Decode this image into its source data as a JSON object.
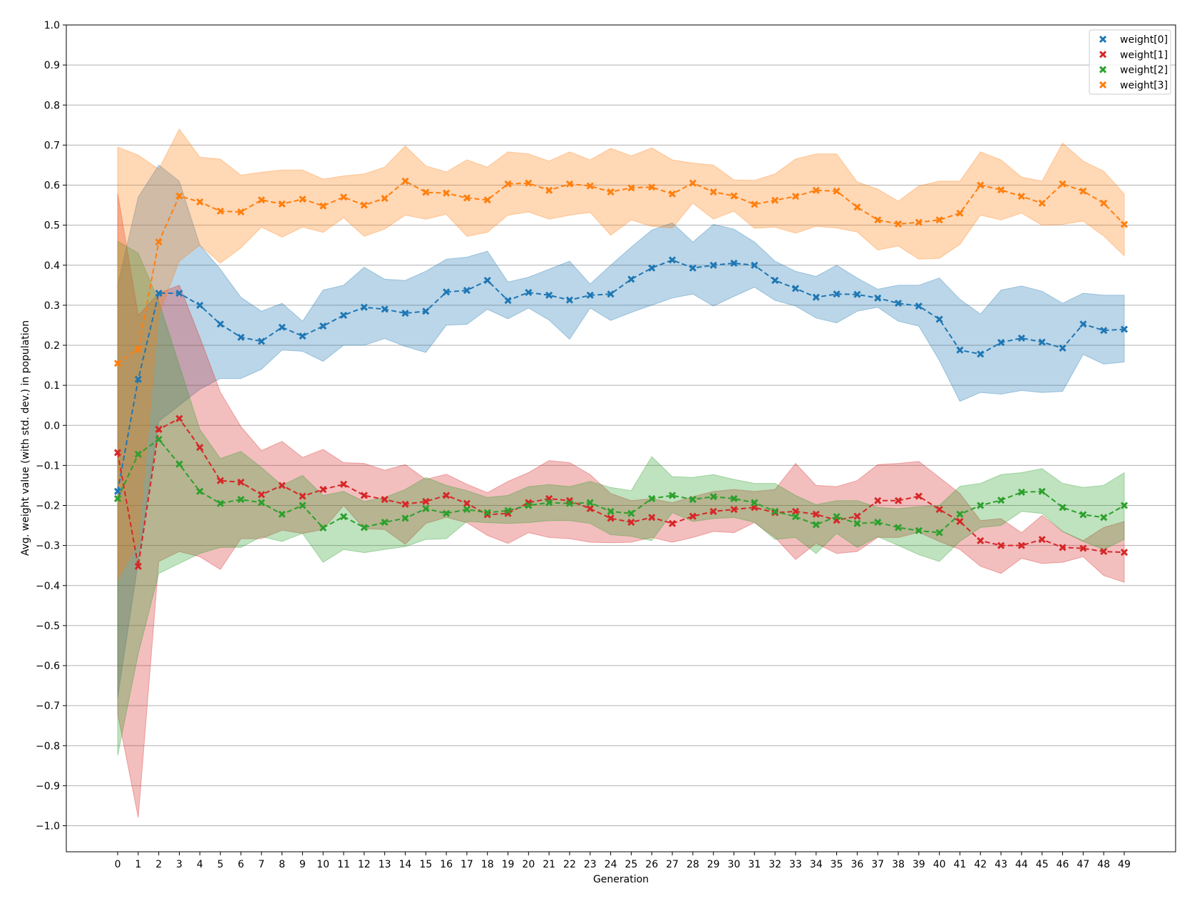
{
  "chart_data": {
    "type": "line",
    "title": "",
    "xlabel": "Generation",
    "ylabel": "Avg. weight value (with std. dev.) in population",
    "xlim": [
      -2.5,
      51.5
    ],
    "ylim": [
      -1.065,
      1.0
    ],
    "grid": "horizontal",
    "legend_position": "top-right",
    "x": [
      0,
      1,
      2,
      3,
      4,
      5,
      6,
      7,
      8,
      9,
      10,
      11,
      12,
      13,
      14,
      15,
      16,
      17,
      18,
      19,
      20,
      21,
      22,
      23,
      24,
      25,
      26,
      27,
      28,
      29,
      30,
      31,
      32,
      33,
      34,
      35,
      36,
      37,
      38,
      39,
      40,
      41,
      42,
      43,
      44,
      45,
      46,
      47,
      48,
      49
    ],
    "x_ticks": [
      "0",
      "1",
      "2",
      "3",
      "4",
      "5",
      "6",
      "7",
      "8",
      "9",
      "10",
      "11",
      "12",
      "13",
      "14",
      "15",
      "16",
      "17",
      "18",
      "19",
      "20",
      "21",
      "22",
      "23",
      "24",
      "25",
      "26",
      "27",
      "28",
      "29",
      "30",
      "31",
      "32",
      "33",
      "34",
      "35",
      "36",
      "37",
      "38",
      "39",
      "40",
      "41",
      "42",
      "43",
      "44",
      "45",
      "46",
      "47",
      "48",
      "49"
    ],
    "y_ticks": [
      "1.0",
      "0.9",
      "0.8",
      "0.7",
      "0.6",
      "0.5",
      "0.4",
      "0.3",
      "0.2",
      "0.1",
      "0.0",
      "−0.1",
      "−0.2",
      "−0.3",
      "−0.4",
      "−0.5",
      "−0.6",
      "−0.7",
      "−0.8",
      "−0.9",
      "−1.0"
    ],
    "y_tick_values": [
      1.0,
      0.9,
      0.8,
      0.7,
      0.6,
      0.5,
      0.4,
      0.3,
      0.2,
      0.1,
      0.0,
      -0.1,
      -0.2,
      -0.3,
      -0.4,
      -0.5,
      -0.6,
      -0.7,
      -0.8,
      -0.9,
      -1.0
    ],
    "series": [
      {
        "name": "weight[0]",
        "color": "#1f77b4",
        "mean": [
          -0.165,
          0.115,
          0.33,
          0.33,
          0.3,
          0.253,
          0.22,
          0.21,
          0.245,
          0.223,
          0.248,
          0.275,
          0.295,
          0.29,
          0.28,
          0.285,
          0.333,
          0.337,
          0.362,
          0.312,
          0.332,
          0.325,
          0.313,
          0.325,
          0.328,
          0.365,
          0.393,
          0.413,
          0.393,
          0.4,
          0.405,
          0.4,
          0.362,
          0.342,
          0.32,
          0.328,
          0.327,
          0.318,
          0.305,
          0.298,
          0.265,
          0.188,
          0.178,
          0.207,
          0.218,
          0.208,
          0.193,
          0.253,
          0.237,
          0.24
        ],
        "std_upper": [
          0.35,
          0.57,
          0.65,
          0.61,
          0.45,
          0.39,
          0.32,
          0.285,
          0.305,
          0.26,
          0.338,
          0.35,
          0.395,
          0.365,
          0.362,
          0.385,
          0.415,
          0.42,
          0.435,
          0.358,
          0.37,
          0.39,
          0.41,
          0.353,
          0.4,
          0.445,
          0.488,
          0.506,
          0.458,
          0.502,
          0.49,
          0.458,
          0.41,
          0.385,
          0.372,
          0.4,
          0.368,
          0.34,
          0.35,
          0.35,
          0.368,
          0.315,
          0.278,
          0.338,
          0.348,
          0.335,
          0.305,
          0.33,
          0.325,
          0.325
        ],
        "std_lower": [
          -0.68,
          -0.34,
          0.01,
          0.05,
          0.09,
          0.117,
          0.117,
          0.14,
          0.188,
          0.185,
          0.16,
          0.2,
          0.2,
          0.217,
          0.197,
          0.182,
          0.25,
          0.252,
          0.29,
          0.266,
          0.293,
          0.263,
          0.215,
          0.293,
          0.262,
          0.282,
          0.3,
          0.318,
          0.328,
          0.298,
          0.322,
          0.345,
          0.312,
          0.298,
          0.268,
          0.256,
          0.285,
          0.295,
          0.26,
          0.248,
          0.162,
          0.06,
          0.082,
          0.078,
          0.087,
          0.082,
          0.085,
          0.177,
          0.153,
          0.158
        ]
      },
      {
        "name": "weight[1]",
        "color": "#d62728",
        "mean": [
          -0.068,
          -0.352,
          -0.01,
          0.017,
          -0.055,
          -0.138,
          -0.142,
          -0.173,
          -0.15,
          -0.177,
          -0.16,
          -0.147,
          -0.175,
          -0.185,
          -0.197,
          -0.19,
          -0.175,
          -0.195,
          -0.223,
          -0.22,
          -0.193,
          -0.183,
          -0.188,
          -0.208,
          -0.232,
          -0.242,
          -0.23,
          -0.245,
          -0.227,
          -0.215,
          -0.21,
          -0.205,
          -0.218,
          -0.215,
          -0.222,
          -0.237,
          -0.227,
          -0.188,
          -0.188,
          -0.177,
          -0.21,
          -0.24,
          -0.288,
          -0.3,
          -0.3,
          -0.285,
          -0.305,
          -0.307,
          -0.315,
          -0.317
        ],
        "std_upper": [
          0.58,
          0.275,
          0.33,
          0.35,
          0.22,
          0.083,
          -0.003,
          -0.063,
          -0.04,
          -0.08,
          -0.06,
          -0.093,
          -0.095,
          -0.112,
          -0.098,
          -0.135,
          -0.122,
          -0.147,
          -0.168,
          -0.14,
          -0.118,
          -0.088,
          -0.093,
          -0.123,
          -0.17,
          -0.188,
          -0.183,
          -0.193,
          -0.178,
          -0.165,
          -0.16,
          -0.165,
          -0.16,
          -0.095,
          -0.15,
          -0.153,
          -0.138,
          -0.098,
          -0.095,
          -0.09,
          -0.13,
          -0.17,
          -0.238,
          -0.233,
          -0.268,
          -0.225,
          -0.265,
          -0.288,
          -0.255,
          -0.24
        ],
        "std_lower": [
          -0.72,
          -0.98,
          -0.34,
          -0.315,
          -0.328,
          -0.36,
          -0.283,
          -0.283,
          -0.262,
          -0.27,
          -0.26,
          -0.2,
          -0.258,
          -0.26,
          -0.297,
          -0.245,
          -0.23,
          -0.243,
          -0.275,
          -0.295,
          -0.268,
          -0.28,
          -0.283,
          -0.292,
          -0.293,
          -0.292,
          -0.28,
          -0.292,
          -0.28,
          -0.265,
          -0.268,
          -0.243,
          -0.28,
          -0.335,
          -0.295,
          -0.32,
          -0.315,
          -0.28,
          -0.28,
          -0.267,
          -0.29,
          -0.31,
          -0.352,
          -0.37,
          -0.332,
          -0.345,
          -0.342,
          -0.328,
          -0.375,
          -0.392
        ]
      },
      {
        "name": "weight[2]",
        "color": "#2ca02c",
        "mean": [
          -0.183,
          -0.072,
          -0.035,
          -0.097,
          -0.165,
          -0.195,
          -0.185,
          -0.193,
          -0.222,
          -0.2,
          -0.256,
          -0.228,
          -0.255,
          -0.242,
          -0.232,
          -0.208,
          -0.22,
          -0.21,
          -0.218,
          -0.213,
          -0.2,
          -0.193,
          -0.195,
          -0.193,
          -0.215,
          -0.22,
          -0.183,
          -0.175,
          -0.185,
          -0.178,
          -0.183,
          -0.193,
          -0.215,
          -0.228,
          -0.248,
          -0.228,
          -0.245,
          -0.242,
          -0.255,
          -0.263,
          -0.268,
          -0.222,
          -0.2,
          -0.187,
          -0.167,
          -0.165,
          -0.205,
          -0.223,
          -0.23,
          -0.2
        ],
        "std_upper": [
          0.46,
          0.43,
          0.31,
          0.15,
          -0.01,
          -0.083,
          -0.065,
          -0.105,
          -0.15,
          -0.125,
          -0.175,
          -0.165,
          -0.19,
          -0.18,
          -0.16,
          -0.13,
          -0.15,
          -0.163,
          -0.18,
          -0.175,
          -0.153,
          -0.148,
          -0.153,
          -0.14,
          -0.155,
          -0.163,
          -0.078,
          -0.128,
          -0.13,
          -0.123,
          -0.135,
          -0.145,
          -0.145,
          -0.175,
          -0.198,
          -0.188,
          -0.188,
          -0.205,
          -0.208,
          -0.203,
          -0.2,
          -0.152,
          -0.145,
          -0.123,
          -0.118,
          -0.108,
          -0.145,
          -0.155,
          -0.15,
          -0.118
        ],
        "std_lower": [
          -0.825,
          -0.57,
          -0.37,
          -0.345,
          -0.32,
          -0.305,
          -0.305,
          -0.278,
          -0.29,
          -0.27,
          -0.342,
          -0.31,
          -0.318,
          -0.31,
          -0.303,
          -0.285,
          -0.283,
          -0.24,
          -0.243,
          -0.245,
          -0.243,
          -0.238,
          -0.238,
          -0.245,
          -0.273,
          -0.277,
          -0.288,
          -0.218,
          -0.24,
          -0.233,
          -0.23,
          -0.242,
          -0.285,
          -0.28,
          -0.32,
          -0.27,
          -0.305,
          -0.278,
          -0.3,
          -0.323,
          -0.34,
          -0.29,
          -0.255,
          -0.25,
          -0.215,
          -0.22,
          -0.265,
          -0.29,
          -0.31,
          -0.285
        ]
      },
      {
        "name": "weight[3]",
        "color": "#ff7f0e",
        "mean": [
          0.155,
          0.19,
          0.458,
          0.573,
          0.558,
          0.535,
          0.533,
          0.563,
          0.553,
          0.565,
          0.548,
          0.57,
          0.55,
          0.567,
          0.61,
          0.582,
          0.58,
          0.568,
          0.563,
          0.603,
          0.605,
          0.587,
          0.603,
          0.598,
          0.583,
          0.593,
          0.595,
          0.578,
          0.605,
          0.583,
          0.573,
          0.552,
          0.562,
          0.572,
          0.587,
          0.585,
          0.545,
          0.513,
          0.503,
          0.507,
          0.513,
          0.53,
          0.6,
          0.588,
          0.572,
          0.555,
          0.603,
          0.585,
          0.555,
          0.502
        ],
        "std_upper": [
          0.695,
          0.675,
          0.64,
          0.74,
          0.67,
          0.665,
          0.625,
          0.632,
          0.638,
          0.638,
          0.615,
          0.623,
          0.628,
          0.645,
          0.698,
          0.648,
          0.633,
          0.663,
          0.645,
          0.683,
          0.678,
          0.66,
          0.683,
          0.663,
          0.692,
          0.673,
          0.693,
          0.663,
          0.655,
          0.65,
          0.613,
          0.612,
          0.628,
          0.665,
          0.678,
          0.678,
          0.608,
          0.59,
          0.56,
          0.598,
          0.61,
          0.61,
          0.683,
          0.663,
          0.62,
          0.61,
          0.705,
          0.66,
          0.635,
          0.578
        ],
        "std_lower": [
          -0.385,
          -0.295,
          0.275,
          0.41,
          0.45,
          0.405,
          0.443,
          0.495,
          0.47,
          0.495,
          0.482,
          0.518,
          0.472,
          0.49,
          0.525,
          0.515,
          0.527,
          0.472,
          0.482,
          0.525,
          0.533,
          0.515,
          0.525,
          0.532,
          0.475,
          0.513,
          0.497,
          0.493,
          0.555,
          0.515,
          0.535,
          0.492,
          0.495,
          0.48,
          0.497,
          0.493,
          0.483,
          0.438,
          0.448,
          0.415,
          0.417,
          0.452,
          0.525,
          0.513,
          0.53,
          0.5,
          0.502,
          0.51,
          0.473,
          0.423
        ]
      }
    ]
  }
}
